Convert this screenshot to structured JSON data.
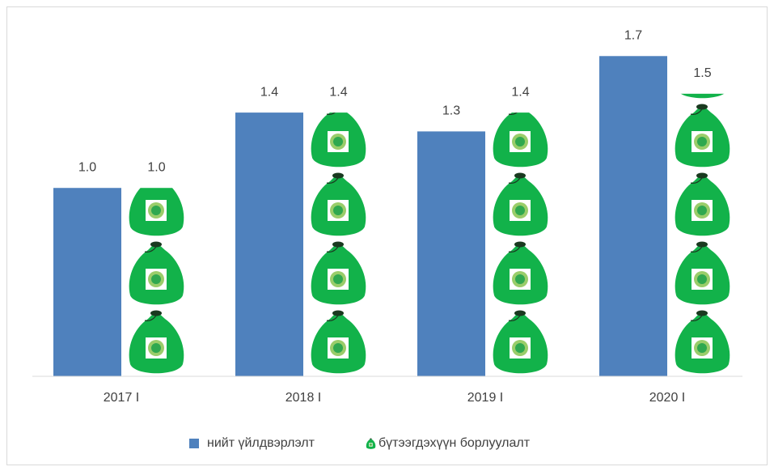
{
  "chart_data": {
    "type": "bar",
    "categories": [
      "2017 I",
      "2018 I",
      "2019 I",
      "2020 I"
    ],
    "series": [
      {
        "name": "нийт үйлдвэрлэлт",
        "color": "#4f81bd",
        "values": [
          1.0,
          1.4,
          1.3,
          1.7
        ],
        "value_labels": [
          "1.0",
          "1.4",
          "1.3",
          "1.7"
        ]
      },
      {
        "name": "бүтээгдэхүүн борлуулалт",
        "color": "#12b24a",
        "values": [
          1.0,
          1.4,
          1.4,
          1.5
        ],
        "value_labels": [
          "1.0",
          "1.4",
          "1.4",
          "1.5"
        ]
      }
    ],
    "ylim": [
      0,
      1.8
    ],
    "legend": "bottom"
  }
}
